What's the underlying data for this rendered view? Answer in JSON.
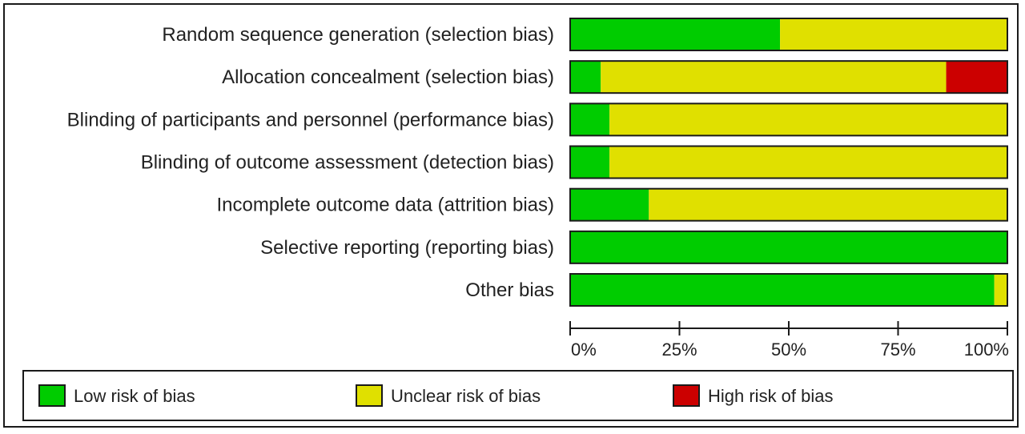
{
  "colors": {
    "low": "#00cc00",
    "unclear": "#e0e000",
    "high": "#cc0000"
  },
  "legend": {
    "items": [
      {
        "key": "low",
        "label": "Low risk of bias"
      },
      {
        "key": "unclear",
        "label": "Unclear risk of bias"
      },
      {
        "key": "high",
        "label": "High risk of bias"
      }
    ]
  },
  "chart_data": {
    "type": "bar",
    "orientation": "horizontal",
    "stacked": true,
    "title": "",
    "xlabel": "",
    "ylabel": "",
    "xlim": [
      0,
      100
    ],
    "x_ticks": [
      "0%",
      "25%",
      "50%",
      "75%",
      "100%"
    ],
    "legend_position": "bottom",
    "grid": false,
    "categories": [
      "Random sequence generation (selection bias)",
      "Allocation concealment (selection bias)",
      "Blinding of participants and personnel (performance bias)",
      "Blinding of outcome assessment (detection bias)",
      "Incomplete outcome data (attrition bias)",
      "Selective reporting (reporting bias)",
      "Other bias"
    ],
    "series": [
      {
        "name": "Low risk of bias",
        "color_key": "low",
        "values": [
          48,
          7,
          9,
          9,
          18,
          100,
          97
        ]
      },
      {
        "name": "Unclear risk of bias",
        "color_key": "unclear",
        "values": [
          52,
          79,
          91,
          91,
          82,
          0,
          3
        ]
      },
      {
        "name": "High risk of bias",
        "color_key": "high",
        "values": [
          0,
          14,
          0,
          0,
          0,
          0,
          0
        ]
      }
    ]
  }
}
